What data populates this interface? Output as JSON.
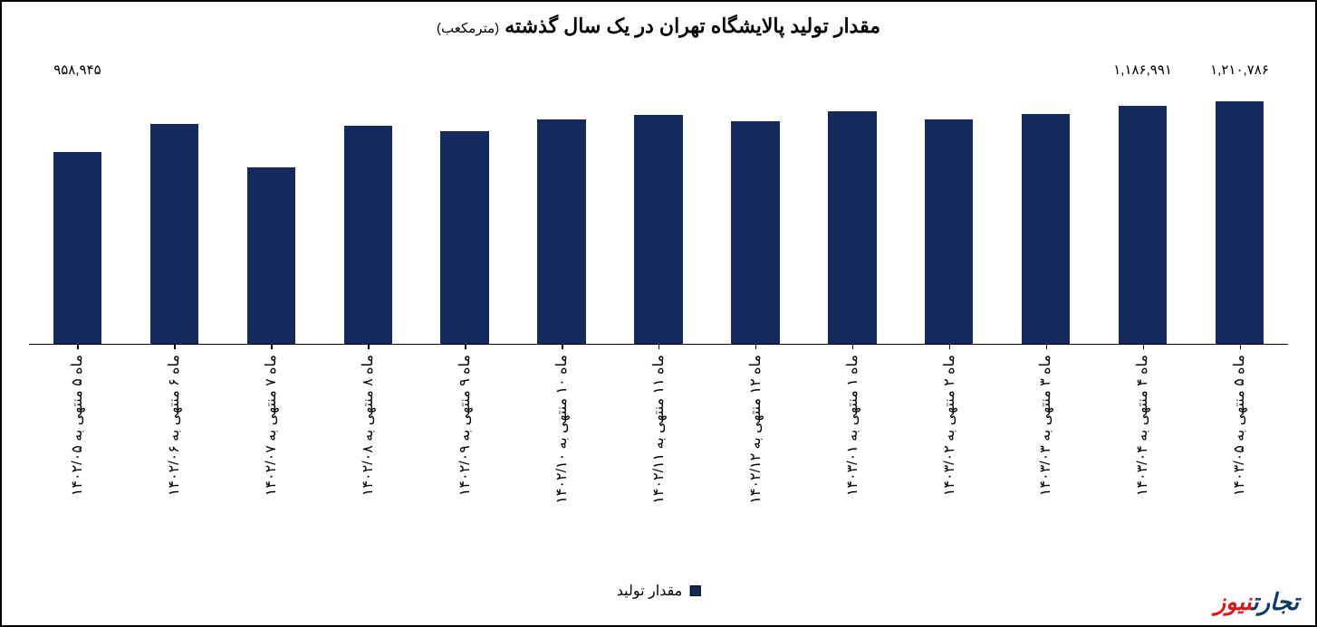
{
  "chart": {
    "type": "bar",
    "title_main": "مقدار تولید پالایشگاه تهران در یک سال گذشته",
    "title_sub": "(مترمکعب)",
    "title_fontsize": 22,
    "subtitle_fontsize": 15,
    "bar_color": "#152a5c",
    "background_color": "#ffffff",
    "border_color": "#000000",
    "axis_color": "#000000",
    "bar_width_ratio": 0.5,
    "ylim": [
      0,
      1300000
    ],
    "value_label_fontsize": 15,
    "xlabel_fontsize": 16,
    "xlabel_rotation": -90,
    "categories": [
      "ماه ۵ منتهی به ۱۴۰۲/۰۵",
      "ماه ۶ منتهی به ۱۴۰۲/۰۶",
      "ماه ۷ منتهی به ۱۴۰۲/۰۷",
      "ماه ۸ منتهی به ۱۴۰۲/۰۸",
      "ماه ۹ منتهی به ۱۴۰۲/۰۹",
      "ماه ۱۰ منتهی به ۱۴۰۲/۱۰",
      "ماه ۱۱ منتهی به ۱۴۰۲/۱۱",
      "ماه ۱۲ منتهی به ۱۴۰۲/۱۲",
      "ماه ۱ منتهی به ۱۴۰۳/۰۱",
      "ماه ۲ منتهی به ۱۴۰۳/۰۲",
      "ماه ۳ منتهی به ۱۴۰۳/۰۳",
      "ماه ۴ منتهی به ۱۴۰۳/۰۴",
      "ماه ۵ منتهی به ۱۴۰۳/۰۵"
    ],
    "values": [
      958945,
      1095000,
      880000,
      1090000,
      1060000,
      1120000,
      1140000,
      1110000,
      1160000,
      1120000,
      1145000,
      1186991,
      1210786
    ],
    "value_labels": [
      "۹۵۸,۹۴۵",
      "",
      "",
      "",
      "",
      "",
      "",
      "",
      "",
      "",
      "",
      "۱,۱۸۶,۹۹۱",
      "۱,۲۱۰,۷۸۶"
    ],
    "legend_label": "مقدار تولید",
    "legend_fontsize": 16
  },
  "watermark": {
    "part1": "تجارت",
    "part2": "نیوز",
    "color1": "#0a3a6b",
    "color2": "#d71a1a",
    "fontsize": 26
  }
}
